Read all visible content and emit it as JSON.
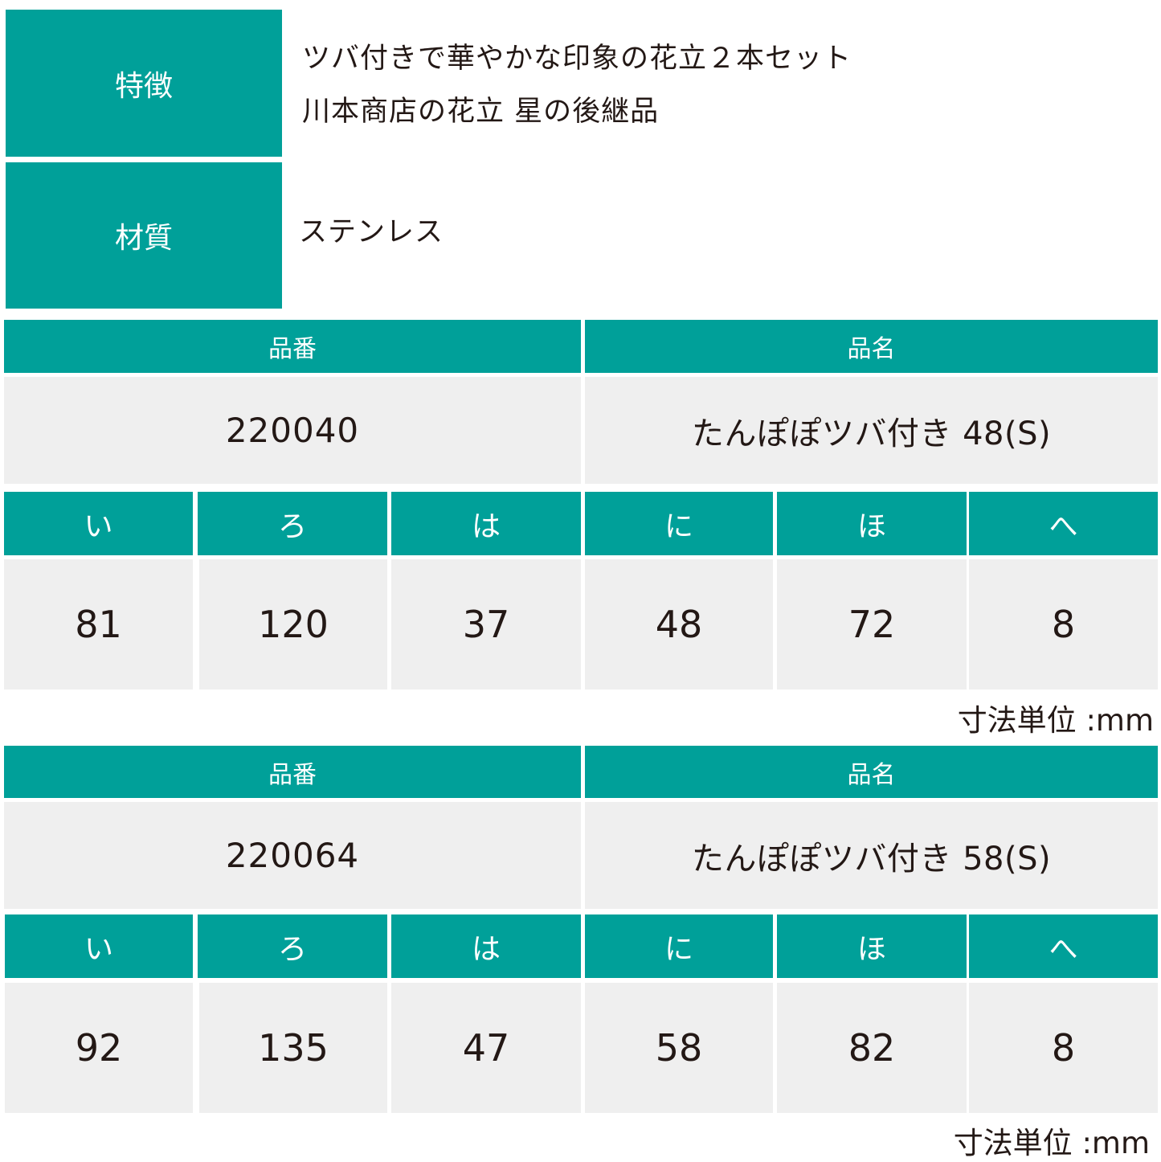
{
  "specs": [
    {
      "label": "特徴",
      "lines": [
        "ツバ付きで華やかな印象の花立２本セット",
        "川本商店の花立 星の後継品"
      ]
    },
    {
      "label": "材質",
      "lines": [
        "ステンレス"
      ]
    }
  ],
  "column_headers": {
    "code": "品番",
    "name": "品名"
  },
  "dimension_labels": [
    "い",
    "ろ",
    "は",
    "に",
    "ほ",
    "へ"
  ],
  "unit_note": "寸法単位 :mm",
  "products": [
    {
      "code": "220040",
      "name": "たんぽぽツバ付き 48(S)",
      "dimensions": [
        "81",
        "120",
        "37",
        "48",
        "72",
        "8"
      ]
    },
    {
      "code": "220064",
      "name": "たんぽぽツバ付き 58(S)",
      "dimensions": [
        "92",
        "135",
        "47",
        "58",
        "82",
        "8"
      ]
    }
  ],
  "colors": {
    "header_teal": "#00a099",
    "cell_grey": "#efefef",
    "text_dark": "#231815"
  }
}
